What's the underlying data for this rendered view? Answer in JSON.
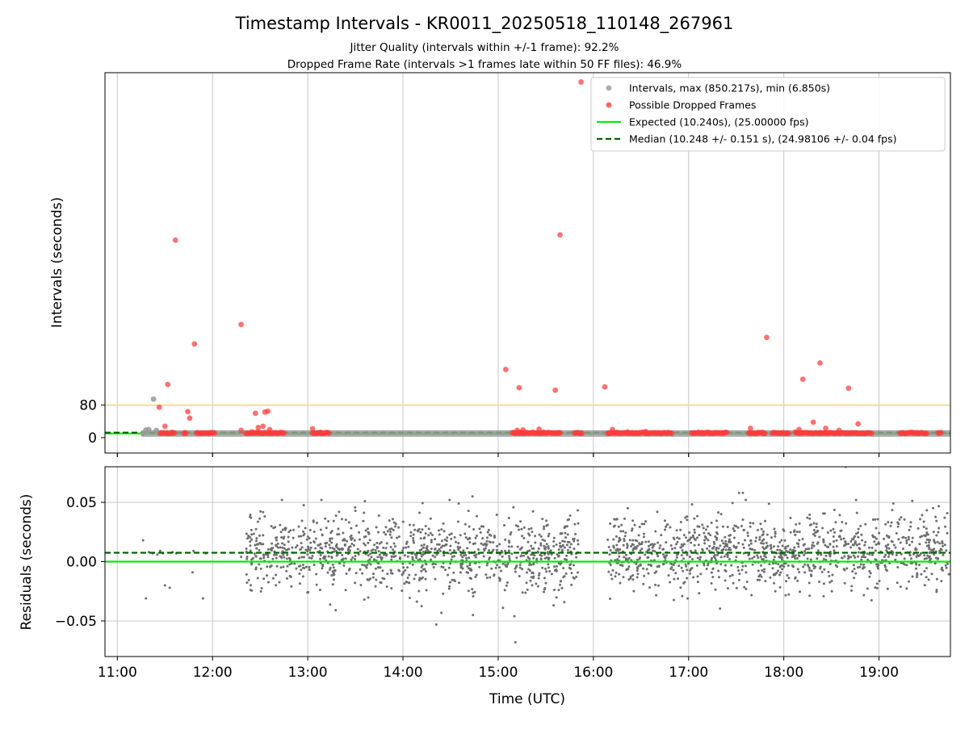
{
  "figure": {
    "title": "Timestamp Intervals - KR0011_20250518_110148_267961",
    "subtitle_line1": "Jitter Quality (intervals within +/-1 frame): 92.2%",
    "subtitle_line2": "Dropped Frame Rate (intervals >1 frames late within 50 FF files): 46.9%"
  },
  "colors": {
    "intervals": "#9a9a9a",
    "dropped": "#ff3b3b",
    "expected": "#00ee00",
    "median": "#006400",
    "threshold": "#f5d37a",
    "residual_points": "#6e6e6e",
    "grid": "#c8c8c8"
  },
  "chart_data": [
    {
      "type": "scatter",
      "panel": "top",
      "ylabel": "Intervals (seconds)",
      "y_ticks": [
        "0",
        "80"
      ],
      "y_tick_values": [
        0,
        80
      ],
      "ylim": [
        -38,
        900
      ],
      "x_ticks": [
        "11:00",
        "12:00",
        "13:00",
        "14:00",
        "15:00",
        "16:00",
        "17:00",
        "18:00",
        "19:00"
      ],
      "x_tick_values": [
        11.0,
        12.0,
        13.0,
        14.0,
        15.0,
        16.0,
        17.0,
        18.0,
        19.0
      ],
      "xlim": [
        10.87,
        19.75
      ],
      "grid": "vertical",
      "legend_position": "top-right",
      "legend": {
        "intervals": "Intervals, max (850.217s), min (6.850s)",
        "dropped": "Possible Dropped Frames",
        "expected": "Expected (10.240s), (25.00000 fps)",
        "median": "Median (10.248 +/- 0.151 s), (24.98106 +/- 0.04 fps)"
      },
      "expected_interval": 10.24,
      "median_interval": 10.248,
      "threshold_line": 80,
      "interval_band_range": [
        11.25,
        19.75
      ],
      "interval_points": [
        {
          "x": 11.27,
          "y": 10.2
        },
        {
          "x": 11.3,
          "y": 18.6
        },
        {
          "x": 11.33,
          "y": 20.0
        },
        {
          "x": 11.38,
          "y": 95.0
        },
        {
          "x": 11.41,
          "y": 18.0
        },
        {
          "x": 11.45,
          "y": 10.2
        }
      ],
      "dropped_points": [
        {
          "x": 11.61,
          "y": 487
        },
        {
          "x": 11.81,
          "y": 231
        },
        {
          "x": 12.3,
          "y": 279
        },
        {
          "x": 11.53,
          "y": 131
        },
        {
          "x": 11.44,
          "y": 75
        },
        {
          "x": 11.74,
          "y": 64
        },
        {
          "x": 11.76,
          "y": 48
        },
        {
          "x": 11.5,
          "y": 28
        },
        {
          "x": 12.3,
          "y": 18
        },
        {
          "x": 12.45,
          "y": 60
        },
        {
          "x": 12.55,
          "y": 63
        },
        {
          "x": 12.58,
          "y": 65
        },
        {
          "x": 12.48,
          "y": 25
        },
        {
          "x": 12.53,
          "y": 28
        },
        {
          "x": 12.6,
          "y": 20
        },
        {
          "x": 13.05,
          "y": 22
        },
        {
          "x": 15.08,
          "y": 168
        },
        {
          "x": 15.22,
          "y": 123
        },
        {
          "x": 15.2,
          "y": 18
        },
        {
          "x": 15.26,
          "y": 19
        },
        {
          "x": 15.43,
          "y": 21
        },
        {
          "x": 15.6,
          "y": 117
        },
        {
          "x": 15.65,
          "y": 500
        },
        {
          "x": 15.87,
          "y": 877
        },
        {
          "x": 16.12,
          "y": 125
        },
        {
          "x": 16.2,
          "y": 20
        },
        {
          "x": 16.55,
          "y": 15
        },
        {
          "x": 17.65,
          "y": 23
        },
        {
          "x": 17.82,
          "y": 247
        },
        {
          "x": 18.2,
          "y": 144
        },
        {
          "x": 18.38,
          "y": 184
        },
        {
          "x": 18.68,
          "y": 122
        },
        {
          "x": 18.31,
          "y": 38
        },
        {
          "x": 18.78,
          "y": 34
        },
        {
          "x": 18.44,
          "y": 23
        },
        {
          "x": 18.16,
          "y": 20
        },
        {
          "x": 18.58,
          "y": 18
        }
      ],
      "dropped_clusters": [
        [
          11.45,
          11.6
        ],
        [
          11.7,
          11.72
        ],
        [
          11.83,
          12.02
        ],
        [
          12.35,
          12.75
        ],
        [
          13.05,
          13.22
        ],
        [
          15.15,
          15.65
        ],
        [
          15.8,
          15.88
        ],
        [
          16.15,
          16.82
        ],
        [
          17.03,
          17.4
        ],
        [
          17.63,
          17.8
        ],
        [
          17.88,
          18.05
        ],
        [
          18.12,
          18.92
        ],
        [
          19.22,
          19.5
        ],
        [
          19.62,
          19.65
        ]
      ]
    },
    {
      "type": "scatter",
      "panel": "bottom",
      "xlabel": "Time (UTC)",
      "ylabel": "Residuals (seconds)",
      "y_ticks": [
        "−0.05",
        "0.00",
        "0.05"
      ],
      "y_tick_values": [
        -0.05,
        0.0,
        0.05
      ],
      "ylim": [
        -0.08,
        0.08
      ],
      "x_ticks": [
        "11:00",
        "12:00",
        "13:00",
        "14:00",
        "15:00",
        "16:00",
        "17:00",
        "18:00",
        "19:00"
      ],
      "x_tick_values": [
        11.0,
        12.0,
        13.0,
        14.0,
        15.0,
        16.0,
        17.0,
        18.0,
        19.0
      ],
      "xlim": [
        10.87,
        19.75
      ],
      "grid": "both",
      "expected_residual": 0.0,
      "median_residual": 0.0075,
      "residual_spread": 0.015,
      "residual_segments": [
        [
          12.35,
          15.85
        ],
        [
          16.15,
          19.75
        ]
      ],
      "residual_sparse_points": [
        {
          "x": 11.27,
          "y": 0.018
        },
        {
          "x": 11.3,
          "y": -0.031
        },
        {
          "x": 11.33,
          "y": 0.008
        },
        {
          "x": 11.37,
          "y": 0.007
        },
        {
          "x": 11.42,
          "y": 0.006
        },
        {
          "x": 11.45,
          "y": 0.009
        },
        {
          "x": 11.48,
          "y": 0.007
        },
        {
          "x": 11.5,
          "y": -0.02
        },
        {
          "x": 11.55,
          "y": -0.022
        },
        {
          "x": 11.58,
          "y": 0.008
        },
        {
          "x": 11.62,
          "y": 0.007
        },
        {
          "x": 11.79,
          "y": -0.009
        },
        {
          "x": 11.8,
          "y": 0.009
        },
        {
          "x": 11.9,
          "y": -0.031
        },
        {
          "x": 11.93,
          "y": 0.007
        },
        {
          "x": 12.3,
          "y": 0.004
        },
        {
          "x": 14.35,
          "y": -0.053
        },
        {
          "x": 15.17,
          "y": -0.046
        },
        {
          "x": 15.18,
          "y": -0.068
        },
        {
          "x": 15.05,
          "y": -0.039
        },
        {
          "x": 13.6,
          "y": 0.051
        },
        {
          "x": 14.73,
          "y": 0.055
        },
        {
          "x": 17.53,
          "y": 0.058
        },
        {
          "x": 17.57,
          "y": 0.058
        },
        {
          "x": 18.65,
          "y": 0.08
        },
        {
          "x": 19.15,
          "y": 0.049
        }
      ]
    }
  ]
}
